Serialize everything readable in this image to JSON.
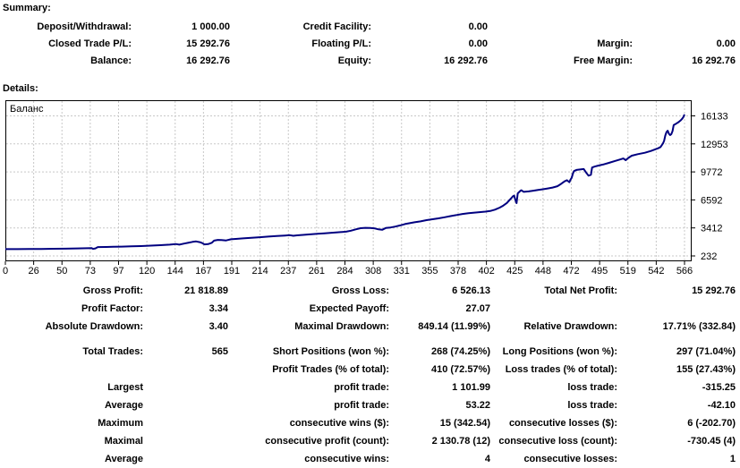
{
  "headings": {
    "summary": "Summary:",
    "details": "Details:"
  },
  "summary": {
    "rows": [
      [
        "Deposit/Withdrawal:",
        "1 000.00",
        "Credit Facility:",
        "0.00",
        "",
        ""
      ],
      [
        "Closed Trade P/L:",
        "15 292.76",
        "Floating P/L:",
        "0.00",
        "Margin:",
        "0.00"
      ],
      [
        "Balance:",
        "16 292.76",
        "Equity:",
        "16 292.76",
        "Free Margin:",
        "16 292.76"
      ]
    ]
  },
  "stats": {
    "block1": [
      [
        "Gross Profit:",
        "21 818.89",
        "Gross Loss:",
        "6 526.13",
        "Total Net Profit:",
        "15 292.76"
      ],
      [
        "Profit Factor:",
        "3.34",
        "Expected Payoff:",
        "27.07",
        "",
        ""
      ],
      [
        "Absolute Drawdown:",
        "3.40",
        "Maximal Drawdown:",
        "849.14 (11.99%)",
        "Relative Drawdown:",
        "17.71% (332.84)"
      ]
    ],
    "block2": [
      [
        "Total Trades:",
        "565",
        "Short Positions (won %):",
        "268 (74.25%)",
        "Long Positions (won %):",
        "297 (71.04%)"
      ],
      [
        "",
        "",
        "Profit Trades (% of total):",
        "410 (72.57%)",
        "Loss trades (% of total):",
        "155 (27.43%)"
      ],
      [
        "Largest",
        "",
        "profit trade:",
        "1 101.99",
        "loss trade:",
        "-315.25"
      ],
      [
        "Average",
        "",
        "profit trade:",
        "53.22",
        "loss trade:",
        "-42.10"
      ],
      [
        "Maximum",
        "",
        "consecutive wins ($):",
        "15 (342.54)",
        "consecutive losses ($):",
        "6 (-202.70)"
      ],
      [
        "Maximal",
        "",
        "consecutive profit (count):",
        "2 130.78 (12)",
        "consecutive loss (count):",
        "-730.45 (4)"
      ],
      [
        "Average",
        "",
        "consecutive wins:",
        "4",
        "consecutive losses:",
        "1"
      ]
    ]
  },
  "chart_data": {
    "type": "line",
    "title": "Баланс",
    "legend": "Баланс",
    "line_color": "#000080",
    "grid_color": "#c8c8c8",
    "border_color": "#000000",
    "x_ticks": [
      "0",
      "26",
      "50",
      "73",
      "97",
      "120",
      "144",
      "167",
      "191",
      "214",
      "237",
      "261",
      "284",
      "308",
      "331",
      "355",
      "378",
      "402",
      "425",
      "448",
      "472",
      "495",
      "519",
      "542",
      "566"
    ],
    "y_ticks": [
      "232",
      "3412",
      "6592",
      "9772",
      "12953",
      "16133"
    ],
    "x_range": [
      0,
      566
    ],
    "y_min": 232,
    "y_step": 3180,
    "series": [
      {
        "name": "Баланс",
        "points": [
          [
            0,
            1000
          ],
          [
            10,
            1006
          ],
          [
            20,
            1014
          ],
          [
            30,
            1025
          ],
          [
            40,
            1040
          ],
          [
            50,
            1058
          ],
          [
            60,
            1082
          ],
          [
            68,
            1105
          ],
          [
            72,
            1112
          ],
          [
            73,
            1030
          ],
          [
            75,
            1090
          ],
          [
            77,
            1235
          ],
          [
            84,
            1252
          ],
          [
            90,
            1266
          ],
          [
            97,
            1288
          ],
          [
            105,
            1318
          ],
          [
            113,
            1352
          ],
          [
            121,
            1398
          ],
          [
            129,
            1448
          ],
          [
            137,
            1515
          ],
          [
            142,
            1580
          ],
          [
            145,
            1512
          ],
          [
            149,
            1630
          ],
          [
            153,
            1745
          ],
          [
            156,
            1830
          ],
          [
            159,
            1880
          ],
          [
            162,
            1800
          ],
          [
            164,
            1700
          ],
          [
            166,
            1547
          ],
          [
            169,
            1575
          ],
          [
            172,
            1730
          ],
          [
            174,
            1965
          ],
          [
            177,
            2055
          ],
          [
            180,
            2040
          ],
          [
            184,
            1990
          ],
          [
            188,
            2125
          ],
          [
            192,
            2165
          ],
          [
            198,
            2225
          ],
          [
            205,
            2295
          ],
          [
            212,
            2360
          ],
          [
            219,
            2425
          ],
          [
            226,
            2490
          ],
          [
            233,
            2550
          ],
          [
            237,
            2590
          ],
          [
            240,
            2520
          ],
          [
            243,
            2565
          ],
          [
            248,
            2620
          ],
          [
            254,
            2680
          ],
          [
            260,
            2740
          ],
          [
            266,
            2800
          ],
          [
            272,
            2860
          ],
          [
            278,
            2925
          ],
          [
            284,
            2990
          ],
          [
            288,
            3100
          ],
          [
            292,
            3250
          ],
          [
            296,
            3380
          ],
          [
            300,
            3420
          ],
          [
            304,
            3400
          ],
          [
            308,
            3350
          ],
          [
            311,
            3250
          ],
          [
            314,
            3200
          ],
          [
            317,
            3400
          ],
          [
            321,
            3460
          ],
          [
            325,
            3560
          ],
          [
            329,
            3700
          ],
          [
            333,
            3850
          ],
          [
            337,
            3950
          ],
          [
            341,
            4050
          ],
          [
            346,
            4150
          ],
          [
            351,
            4300
          ],
          [
            356,
            4400
          ],
          [
            361,
            4500
          ],
          [
            366,
            4620
          ],
          [
            371,
            4750
          ],
          [
            376,
            4870
          ],
          [
            381,
            5000
          ],
          [
            386,
            5090
          ],
          [
            391,
            5150
          ],
          [
            396,
            5210
          ],
          [
            400,
            5260
          ],
          [
            404,
            5330
          ],
          [
            408,
            5480
          ],
          [
            412,
            5720
          ],
          [
            415,
            5950
          ],
          [
            418,
            6250
          ],
          [
            420,
            6550
          ],
          [
            422,
            6850
          ],
          [
            423,
            7000
          ],
          [
            424,
            7080
          ],
          [
            425,
            6600
          ],
          [
            426,
            6230
          ],
          [
            427,
            7332
          ],
          [
            429,
            7600
          ],
          [
            430,
            7690
          ],
          [
            432,
            7510
          ],
          [
            436,
            7560
          ],
          [
            440,
            7640
          ],
          [
            444,
            7720
          ],
          [
            448,
            7800
          ],
          [
            452,
            7890
          ],
          [
            456,
            7990
          ],
          [
            460,
            8150
          ],
          [
            463,
            8400
          ],
          [
            466,
            8700
          ],
          [
            468,
            8830
          ],
          [
            470,
            8600
          ],
          [
            471,
            8900
          ],
          [
            472,
            9100
          ],
          [
            473,
            9600
          ],
          [
            474,
            9870
          ],
          [
            476,
            10000
          ],
          [
            479,
            10050
          ],
          [
            482,
            10100
          ],
          [
            484,
            9700
          ],
          [
            486,
            9350
          ],
          [
            488,
            9450
          ],
          [
            489,
            10270
          ],
          [
            491,
            10370
          ],
          [
            494,
            10480
          ],
          [
            498,
            10610
          ],
          [
            503,
            10800
          ],
          [
            508,
            11010
          ],
          [
            513,
            11210
          ],
          [
            515,
            11300
          ],
          [
            517,
            11100
          ],
          [
            519,
            11350
          ],
          [
            522,
            11610
          ],
          [
            527,
            11780
          ],
          [
            533,
            11950
          ],
          [
            538,
            12150
          ],
          [
            542,
            12350
          ],
          [
            544,
            12450
          ],
          [
            546,
            12600
          ],
          [
            548,
            13000
          ],
          [
            549,
            13300
          ],
          [
            550,
            13900
          ],
          [
            551,
            14300
          ],
          [
            552,
            14450
          ],
          [
            553,
            14100
          ],
          [
            554,
            13950
          ],
          [
            555,
            14050
          ],
          [
            556,
            14400
          ],
          [
            557,
            15100
          ],
          [
            559,
            15250
          ],
          [
            561,
            15420
          ],
          [
            563,
            15650
          ],
          [
            564,
            15800
          ],
          [
            565,
            16000
          ],
          [
            566,
            16292.76
          ]
        ]
      }
    ]
  }
}
